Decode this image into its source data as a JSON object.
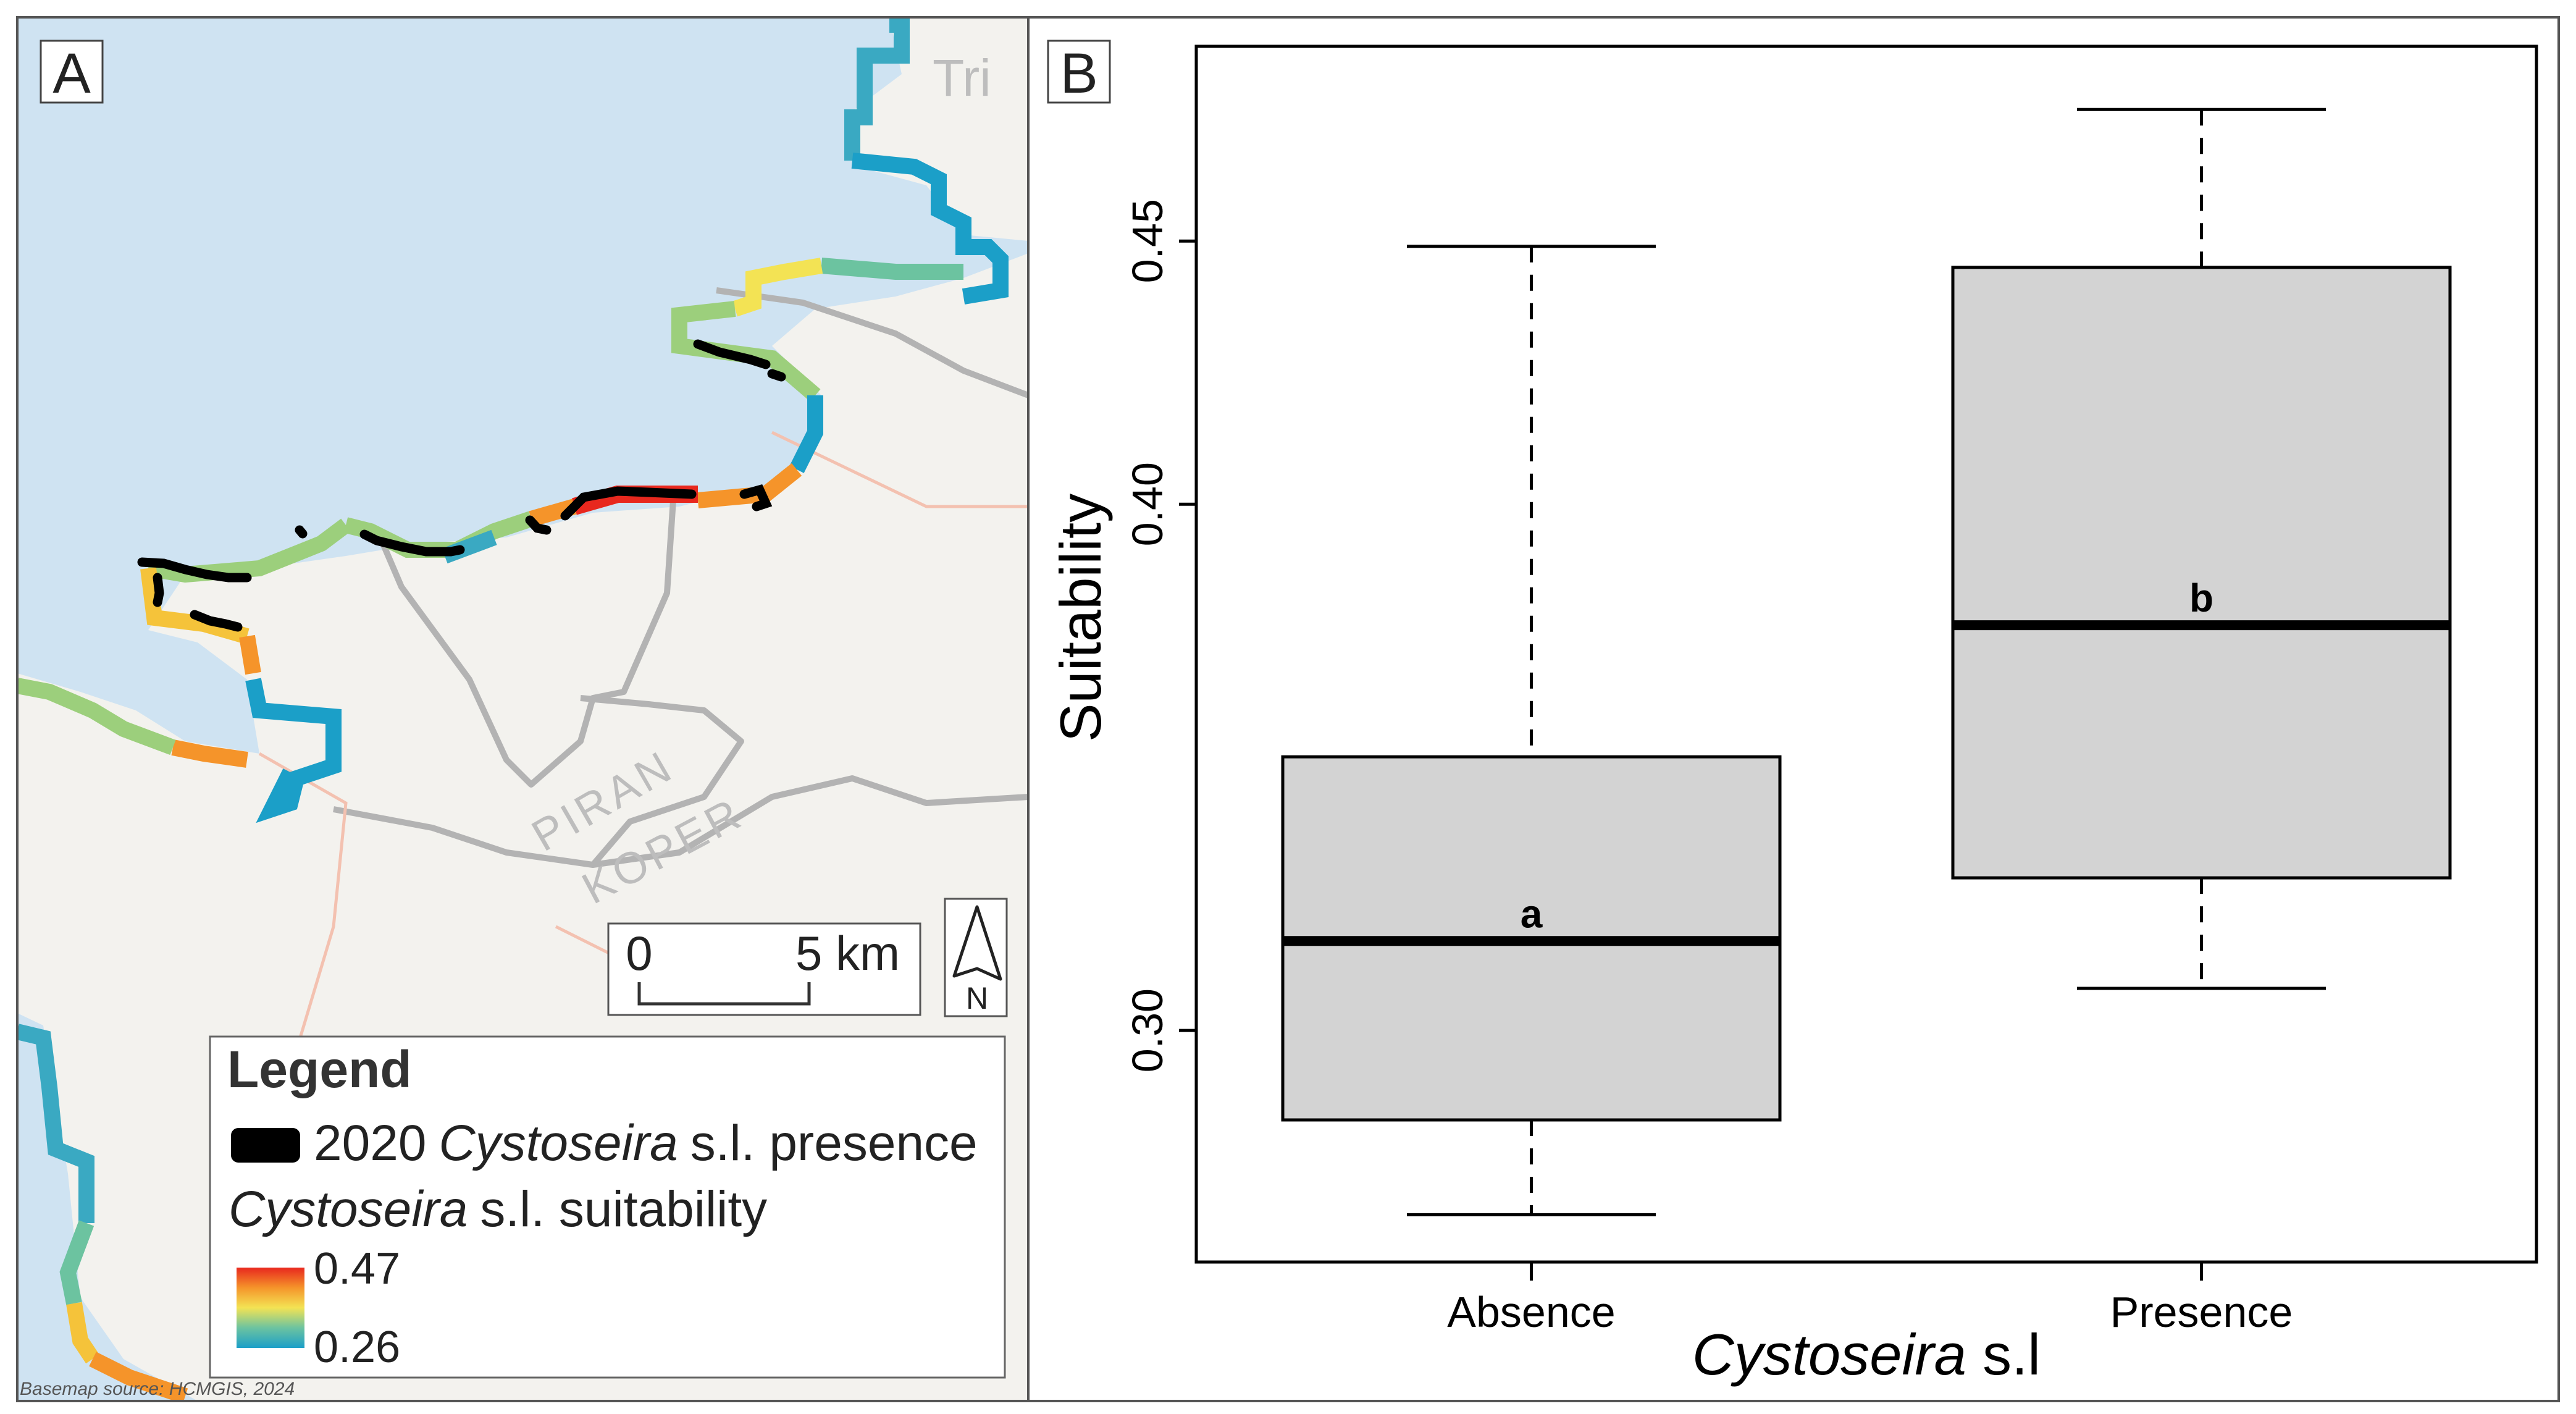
{
  "panel_a": {
    "label": "A",
    "place_labels": {
      "tri": "Tri",
      "piran": "PIRAN",
      "koper": "KOPER"
    },
    "scale_bar": {
      "zero": "0",
      "five_km": "5 km"
    },
    "north_letter": "N",
    "legend": {
      "title": "Legend",
      "presence_year": "2020",
      "presence_genus": "Cystoseira",
      "presence_rest": "s.l. presence",
      "suit_genus": "Cystoseira",
      "suit_rest": "s.l. suitability",
      "max": "0.47",
      "min": "0.26"
    },
    "attribution": "Basemap source: HCMGIS, 2024"
  },
  "colors": {
    "sea": "#cfe3f2",
    "land": "#f3f2ee",
    "road": "#b3b3b3",
    "box_fill": "#d3d3d3",
    "presence": "#000000",
    "suit_high": "#e8281e",
    "suit_mid": "#f3e354",
    "suit_low": "#1b9fc8"
  },
  "chart_data": {
    "type": "box",
    "panel_label": "B",
    "xlabel_italic": "Cystoseira",
    "xlabel_rest": " s.l",
    "ylabel": "Suitability",
    "ylim": [
      0.256,
      0.487
    ],
    "yticks": [
      0.3,
      0.4,
      0.45
    ],
    "ytick_labels": [
      "0.30",
      "0.40",
      "0.45"
    ],
    "categories": [
      "Absence",
      "Presence"
    ],
    "boxes": [
      {
        "category": "Absence",
        "whisker_low": 0.265,
        "q1": 0.283,
        "median": 0.317,
        "q3": 0.352,
        "whisker_high": 0.449,
        "letter": "a"
      },
      {
        "category": "Presence",
        "whisker_low": 0.308,
        "q1": 0.329,
        "median": 0.377,
        "q3": 0.445,
        "whisker_high": 0.475,
        "letter": "b"
      }
    ],
    "grid": false,
    "legend": "none"
  }
}
